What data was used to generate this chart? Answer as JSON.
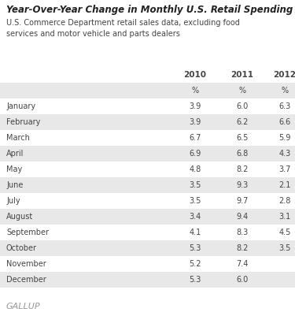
{
  "title": "Year-Over-Year Change in Monthly U.S. Retail Spending",
  "subtitle": "U.S. Commerce Department retail sales data, excluding food\nservices and motor vehicle and parts dealers",
  "months": [
    "January",
    "February",
    "March",
    "April",
    "May",
    "June",
    "July",
    "August",
    "September",
    "October",
    "November",
    "December"
  ],
  "data_2010": [
    "3.9",
    "3.9",
    "6.7",
    "6.9",
    "4.8",
    "3.5",
    "3.5",
    "3.4",
    "4.1",
    "5.3",
    "5.2",
    "5.3"
  ],
  "data_2011": [
    "6.0",
    "6.2",
    "6.5",
    "6.8",
    "8.2",
    "9.3",
    "9.7",
    "9.4",
    "8.3",
    "8.2",
    "7.4",
    "6.0"
  ],
  "data_2012": [
    "6.3",
    "6.6",
    "5.9",
    "4.3",
    "3.7",
    "2.1",
    "2.8",
    "3.1",
    "4.5",
    "3.5",
    "",
    ""
  ],
  "stripe_color": "#e8e8e8",
  "white": "#ffffff",
  "title_color": "#222222",
  "text_color": "#444444",
  "gallup_color": "#999999",
  "footer": "GALLUP"
}
